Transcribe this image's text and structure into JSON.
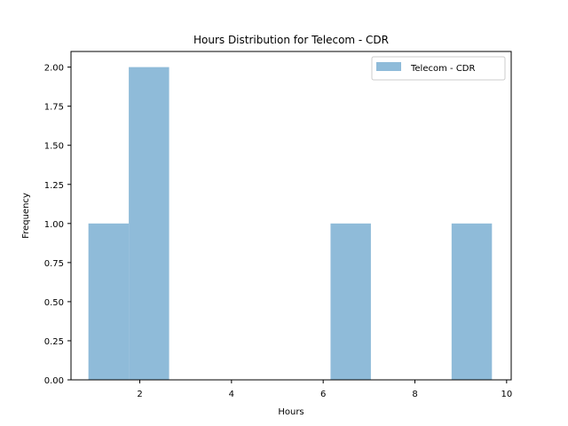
{
  "chart_data": {
    "type": "bar",
    "title": "Hours Distribution for Telecom - CDR",
    "xlabel": "Hours",
    "ylabel": "Frequency",
    "xlim": [
      0.5,
      10.1
    ],
    "ylim": [
      0,
      2.1
    ],
    "x_ticks": [
      2,
      4,
      6,
      8,
      10
    ],
    "y_ticks": [
      0.0,
      0.25,
      0.5,
      0.75,
      1.0,
      1.25,
      1.5,
      1.75,
      2.0
    ],
    "y_tick_labels": [
      "0.00",
      "0.25",
      "0.50",
      "0.75",
      "1.00",
      "1.25",
      "1.50",
      "1.75",
      "2.00"
    ],
    "series": [
      {
        "name": "Telecom - CDR",
        "color": "#8fbbd9",
        "bins": [
          {
            "start": 0.88,
            "end": 1.76,
            "value": 1
          },
          {
            "start": 1.76,
            "end": 2.64,
            "value": 2
          },
          {
            "start": 2.64,
            "end": 3.52,
            "value": 0
          },
          {
            "start": 3.52,
            "end": 4.4,
            "value": 0
          },
          {
            "start": 4.4,
            "end": 5.28,
            "value": 0
          },
          {
            "start": 5.28,
            "end": 6.16,
            "value": 0
          },
          {
            "start": 6.16,
            "end": 7.04,
            "value": 1
          },
          {
            "start": 7.04,
            "end": 7.92,
            "value": 0
          },
          {
            "start": 7.92,
            "end": 8.8,
            "value": 0
          },
          {
            "start": 8.8,
            "end": 9.68,
            "value": 1
          }
        ]
      }
    ],
    "legend_position": "top-right",
    "grid": false
  }
}
